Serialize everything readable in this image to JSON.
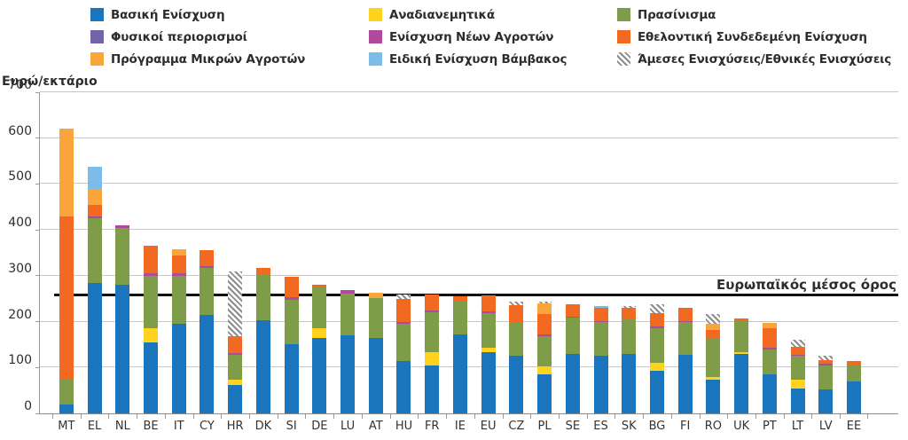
{
  "y_axis": {
    "title": "Ευρώ/εκτάριο",
    "ticks": [
      700,
      600,
      500,
      400,
      300,
      200,
      100,
      0
    ]
  },
  "average_line": {
    "label": "Ευρωπαϊκός μέσος όρος",
    "value": 257
  },
  "legend": {
    "items": [
      {
        "label": "Βασική Ενίσχυση",
        "color": "#1b75bc",
        "hatch": false
      },
      {
        "label": "Αναδιανεμητικά",
        "color": "#ffd21e",
        "hatch": false
      },
      {
        "label": "Πρασίνισμα",
        "color": "#7f9c49",
        "hatch": false
      },
      {
        "label": "Φυσικοί περιορισμοί",
        "color": "#7263aa",
        "hatch": false
      },
      {
        "label": "Ενίσχυση Νέων Αγροτών",
        "color": "#b04a9d",
        "hatch": false
      },
      {
        "label": "Εθελοντική Συνδεδεμένη Ενίσχυση",
        "color": "#f26a21",
        "hatch": false
      },
      {
        "label": "Πρόγραμμα Μικρών Αγροτών",
        "color": "#faa53b",
        "hatch": false
      },
      {
        "label": "Ειδική Ενίσχυση Βάμβακος",
        "color": "#7bbde8",
        "hatch": false
      },
      {
        "label": "Άμεσες Ενισχύσεις/Εθνικές Ενισχύσεις",
        "color": "#8c8c8c",
        "hatch": true
      }
    ]
  },
  "chart_data": {
    "type": "bar",
    "stacked": true,
    "title": "",
    "xlabel": "",
    "ylabel": "Ευρώ/εκτάριο",
    "ylim": [
      0,
      700
    ],
    "grid": true,
    "legend_position": "top",
    "average_line": {
      "label": "Ευρωπαϊκός μέσος όρος",
      "value": 257
    },
    "categories": [
      "MT",
      "EL",
      "NL",
      "BE",
      "IT",
      "CY",
      "HR",
      "DK",
      "SI",
      "DE",
      "LU",
      "AT",
      "HU",
      "FR",
      "IE",
      "EU",
      "CZ",
      "PL",
      "SE",
      "ES",
      "SK",
      "BG",
      "FI",
      "RO",
      "UK",
      "PT",
      "LT",
      "LV",
      "EE"
    ],
    "series": [
      {
        "name": "Βασική Ενίσχυση",
        "color": "#1b75bc",
        "hatch": false,
        "values": [
          20,
          285,
          280,
          155,
          195,
          215,
          62,
          203,
          150,
          165,
          170,
          165,
          115,
          105,
          173,
          133,
          125,
          85,
          130,
          125,
          130,
          93,
          128,
          74,
          130,
          85,
          55,
          52,
          70
        ]
      },
      {
        "name": "Αναδιανεμητικά",
        "color": "#ffd21e",
        "hatch": false,
        "values": [
          0,
          0,
          0,
          30,
          0,
          0,
          12,
          0,
          0,
          20,
          0,
          0,
          0,
          28,
          0,
          10,
          0,
          18,
          0,
          0,
          0,
          18,
          0,
          6,
          3,
          0,
          18,
          0,
          0
        ]
      },
      {
        "name": "Πρασίνισμα",
        "color": "#7f9c49",
        "hatch": false,
        "values": [
          55,
          140,
          125,
          115,
          105,
          103,
          54,
          98,
          98,
          90,
          92,
          86,
          80,
          87,
          72,
          76,
          75,
          66,
          78,
          75,
          75,
          75,
          72,
          83,
          68,
          55,
          52,
          53,
          35
        ]
      },
      {
        "name": "Φυσικοί περιορισμοί",
        "color": "#7263aa",
        "hatch": false,
        "values": [
          0,
          0,
          0,
          0,
          0,
          0,
          0,
          0,
          0,
          0,
          0,
          0,
          0,
          0,
          0,
          0,
          0,
          0,
          0,
          0,
          0,
          0,
          0,
          0,
          0,
          0,
          0,
          0,
          0
        ]
      },
      {
        "name": "Ενίσχυση Νέων Αγροτών",
        "color": "#b04a9d",
        "hatch": false,
        "values": [
          0,
          5,
          5,
          5,
          5,
          4,
          4,
          0,
          6,
          0,
          7,
          0,
          5,
          5,
          0,
          3,
          0,
          3,
          2,
          2,
          0,
          3,
          2,
          0,
          0,
          4,
          3,
          3,
          0
        ]
      },
      {
        "name": "Εθελοντική Συνδεδεμένη Ενίσχυση",
        "color": "#f26a21",
        "hatch": false,
        "values": [
          355,
          25,
          0,
          60,
          40,
          34,
          36,
          16,
          43,
          6,
          0,
          0,
          49,
          35,
          10,
          35,
          35,
          45,
          27,
          28,
          25,
          30,
          29,
          18,
          6,
          42,
          17,
          9,
          10
        ]
      },
      {
        "name": "Πρόγραμμα Μικρών Αγροτών",
        "color": "#faa53b",
        "hatch": false,
        "values": [
          190,
          35,
          0,
          0,
          12,
          0,
          0,
          0,
          0,
          0,
          0,
          12,
          0,
          0,
          0,
          0,
          0,
          22,
          0,
          0,
          0,
          0,
          0,
          15,
          0,
          11,
          0,
          0,
          0
        ]
      },
      {
        "name": "Ειδική Ενίσχυση Βάμβακος",
        "color": "#7bbde8",
        "hatch": false,
        "values": [
          0,
          48,
          0,
          0,
          0,
          0,
          0,
          0,
          0,
          0,
          0,
          0,
          0,
          0,
          0,
          0,
          0,
          0,
          0,
          4,
          0,
          0,
          0,
          0,
          0,
          0,
          0,
          0,
          0
        ]
      },
      {
        "name": "Άμεσες Ενισχύσεις/Εθνικές Ενισχύσεις",
        "color": "#8c8c8c",
        "hatch": true,
        "values": [
          0,
          0,
          0,
          0,
          0,
          0,
          142,
          0,
          0,
          0,
          0,
          0,
          11,
          0,
          0,
          0,
          8,
          4,
          0,
          0,
          5,
          18,
          0,
          20,
          0,
          0,
          15,
          9,
          0
        ]
      }
    ]
  }
}
